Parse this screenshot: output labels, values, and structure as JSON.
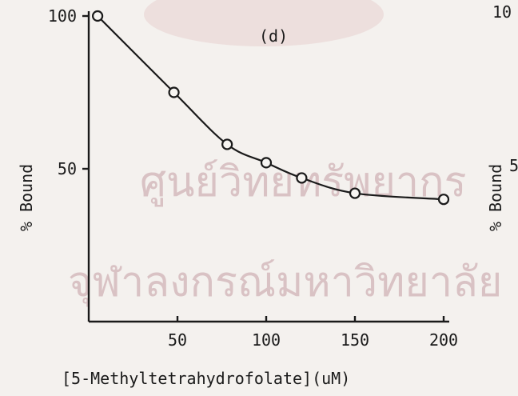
{
  "chart_data": {
    "type": "scatter",
    "panel_label": "(d)",
    "xlabel": "[5-Methyltetrahydrofolate](uM)",
    "ylabel": "% Bound",
    "x_ticks": [
      50,
      100,
      150,
      200
    ],
    "y_ticks": [
      50,
      100
    ],
    "xlim": [
      0,
      200
    ],
    "ylim": [
      0,
      100
    ],
    "series": [
      {
        "x": [
          5,
          48,
          78,
          100,
          120,
          150,
          200
        ],
        "y": [
          100,
          75,
          58,
          52,
          47,
          42,
          40
        ],
        "marker": "open-circle",
        "fit_curve": true
      }
    ],
    "right_panel_partial": {
      "ylabel": "% Bound",
      "tick_fragments": [
        "10",
        "5"
      ]
    },
    "watermark": [
      "ศูนย์วิทยทรัพยากร",
      "จุฬาลงกรณ์มหาวิทยาลัย"
    ],
    "colors": {
      "ink": "#1a1a1a",
      "paper": "#f4f1ee",
      "watermark": "#d9c2c4"
    }
  }
}
